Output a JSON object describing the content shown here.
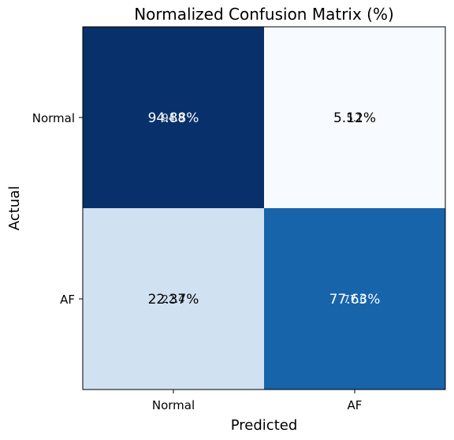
{
  "chart_data": {
    "type": "heatmap",
    "title": "Normalized Confusion Matrix (%)",
    "xlabel": "Predicted",
    "ylabel": "Actual",
    "x_categories": [
      "Normal",
      "AF"
    ],
    "y_categories": [
      "Normal",
      "AF"
    ],
    "values": [
      [
        94.88,
        5.12
      ],
      [
        22.37,
        77.63
      ]
    ],
    "cell_labels": [
      [
        "94.88%",
        "5.12%"
      ],
      [
        "22.37%",
        "77.63%"
      ]
    ],
    "overlay_labels": [
      [
        "94.9",
        "5.1"
      ],
      [
        "22.4",
        "77.6"
      ]
    ],
    "colormap": "Blues",
    "value_range": [
      0,
      100
    ],
    "cell_colors": [
      [
        "#08306b",
        "#f7fbff"
      ],
      [
        "#d0e1f2",
        "#1764ab"
      ]
    ],
    "label_colors": [
      [
        "#ffffff",
        "#000000"
      ],
      [
        "#000000",
        "#ffffff"
      ]
    ],
    "grid": false,
    "legend": "none"
  }
}
